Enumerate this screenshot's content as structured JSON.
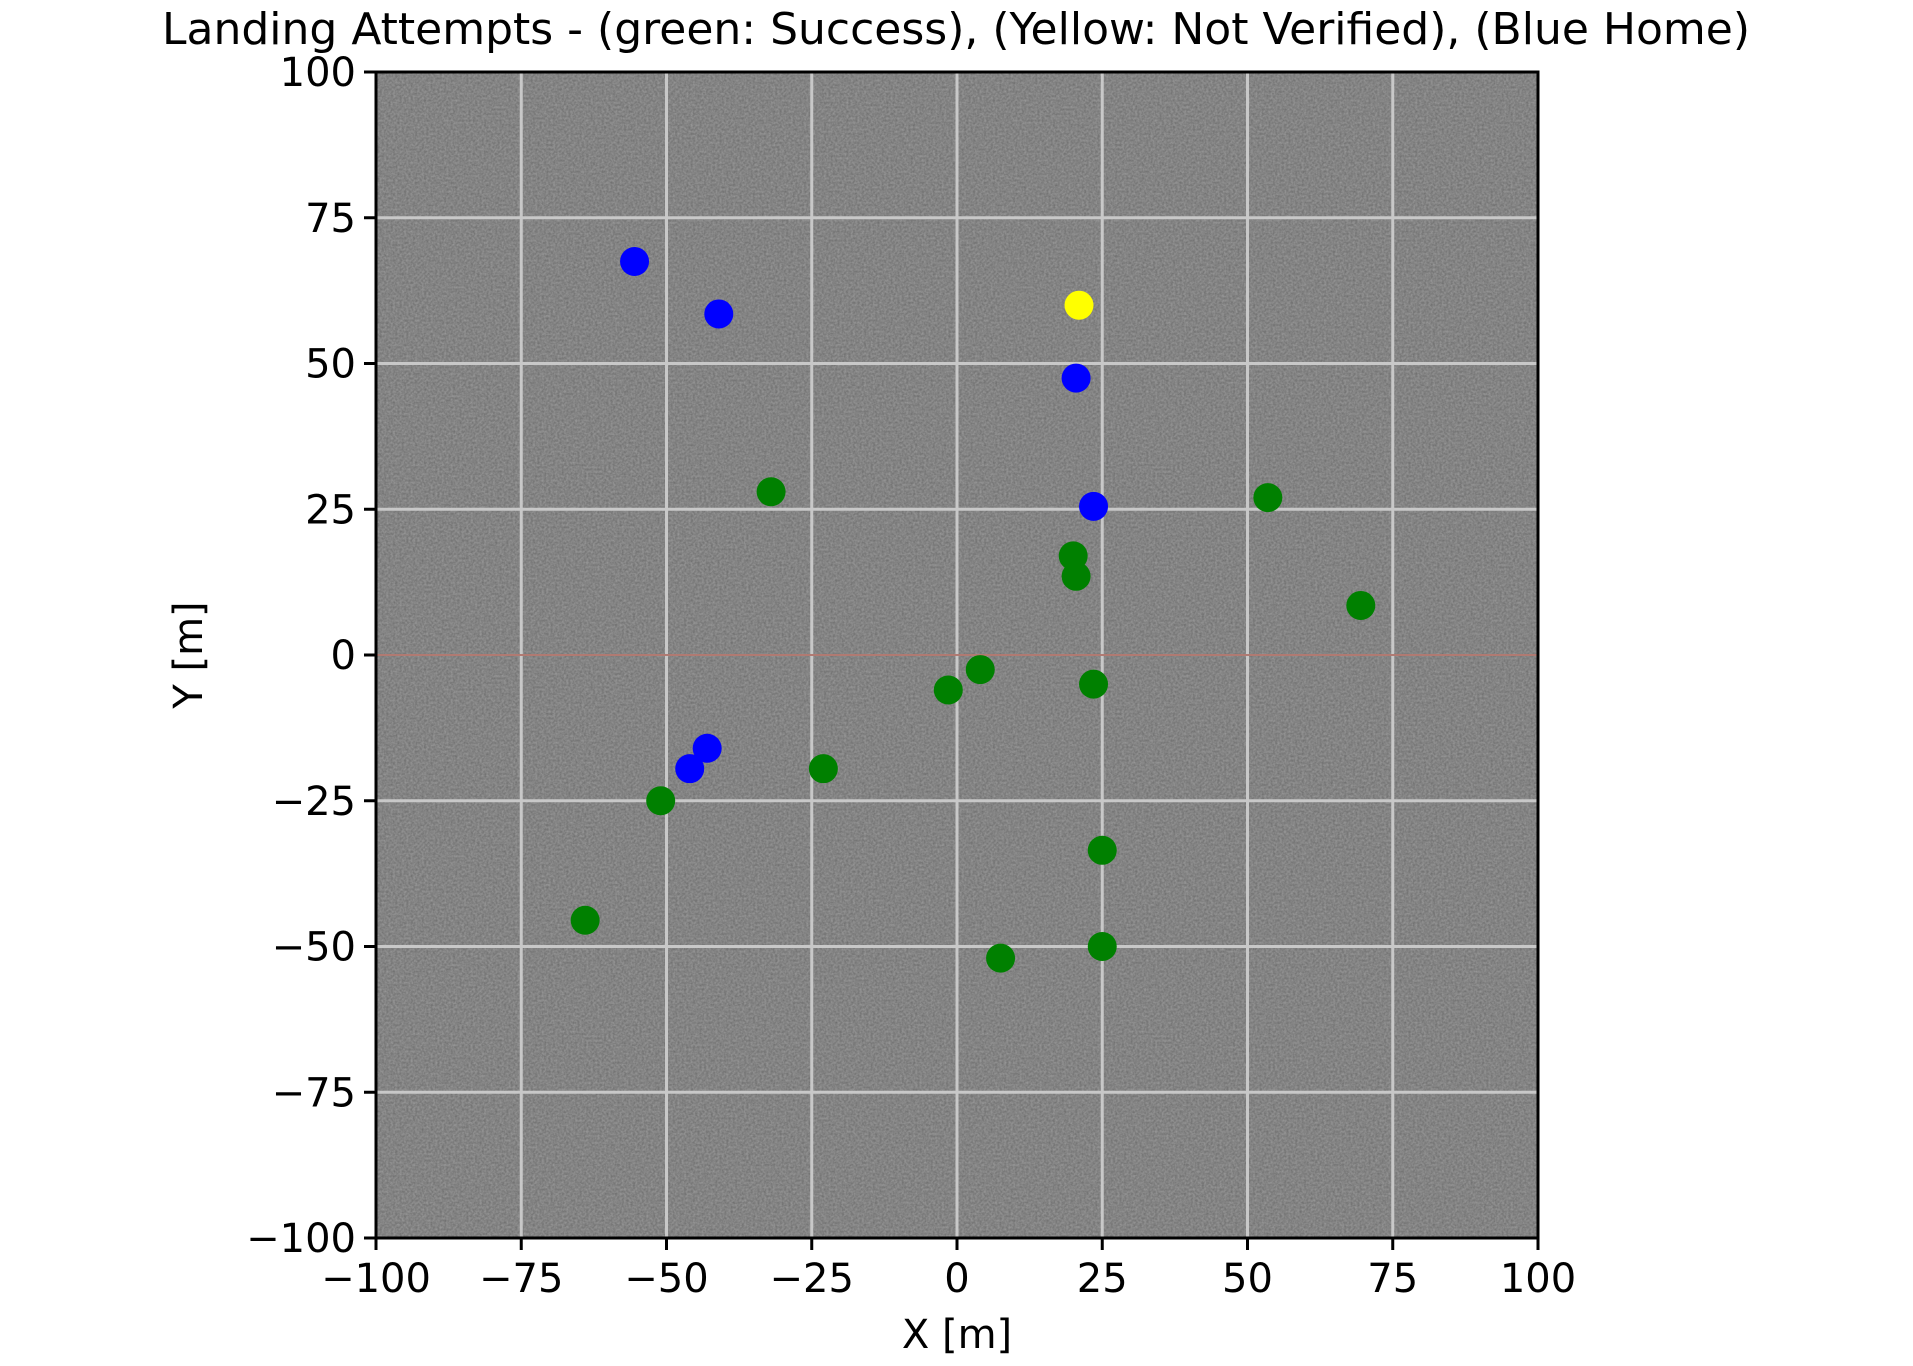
{
  "chart_data": {
    "type": "scatter",
    "title": "Landing Attempts - (green: Success), (Yellow: Not Verified), (Blue Home)",
    "xlabel": "X [m]",
    "ylabel": "Y [m]",
    "xlim": [
      -100,
      100
    ],
    "ylim": [
      -100,
      100
    ],
    "xticks": [
      -100,
      -75,
      -50,
      -25,
      0,
      25,
      50,
      75,
      100
    ],
    "yticks": [
      -100,
      -75,
      -50,
      -25,
      0,
      25,
      50,
      75,
      100
    ],
    "xtick_labels": [
      "−100",
      "−75",
      "−50",
      "−25",
      "0",
      "25",
      "50",
      "75",
      "100"
    ],
    "ytick_labels": [
      "−100",
      "−75",
      "−50",
      "−25",
      "0",
      "25",
      "50",
      "75",
      "100"
    ],
    "grid": true,
    "background": "satellite ground texture (gray)",
    "series": [
      {
        "color": "#008000",
        "points": [
          [
            -32,
            28
          ],
          [
            53.5,
            27
          ],
          [
            20,
            17
          ],
          [
            20.5,
            13.5
          ],
          [
            69.5,
            8.5
          ],
          [
            4,
            -2.5
          ],
          [
            -1.5,
            -6
          ],
          [
            23.5,
            -5
          ],
          [
            -23,
            -19.5
          ],
          [
            -51,
            -25
          ],
          [
            25,
            -33.5
          ],
          [
            -64,
            -45.5
          ],
          [
            7.5,
            -52
          ],
          [
            25,
            -50
          ]
        ]
      },
      {
        "color": "#ffff00",
        "points": [
          [
            21,
            60
          ]
        ]
      },
      {
        "color": "#0000ff",
        "points": [
          [
            -55.5,
            67.5
          ],
          [
            -41,
            58.5
          ],
          [
            20.5,
            47.5
          ],
          [
            23.5,
            25.5
          ],
          [
            -43,
            -16
          ],
          [
            -46,
            -19.5
          ]
        ]
      }
    ]
  }
}
